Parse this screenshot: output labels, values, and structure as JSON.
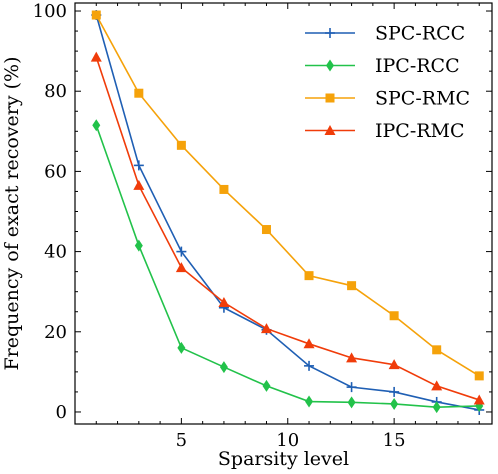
{
  "chart_data": {
    "type": "line",
    "title": "",
    "xlabel": "Sparsity level",
    "ylabel": "Frequency of exact recovery (%)",
    "xlim": [
      0,
      19.6
    ],
    "ylim": [
      -3,
      102
    ],
    "xticks": [
      5,
      10,
      15
    ],
    "yticks": [
      0,
      20,
      40,
      60,
      80,
      100
    ],
    "grid": false,
    "legend_position": "top-right",
    "x": [
      1,
      3,
      5,
      7,
      9,
      11,
      13,
      15,
      17,
      19
    ],
    "series": [
      {
        "name": "SPC-RCC",
        "color": "#1f5fb4",
        "marker": "plus",
        "values": [
          99,
          61.5,
          40,
          26,
          20.5,
          11.5,
          6.2,
          5,
          2.5,
          0.5
        ]
      },
      {
        "name": "IPC-RCC",
        "color": "#22c24a",
        "marker": "diamond",
        "values": [
          71.5,
          41.5,
          16,
          11.2,
          6.5,
          2.6,
          2.4,
          2,
          1.2,
          1.5
        ]
      },
      {
        "name": "SPC-RMC",
        "color": "#f5a20a",
        "marker": "square",
        "values": [
          99,
          79.5,
          66.5,
          55.5,
          45.5,
          34,
          31.5,
          24,
          15.5,
          9
        ]
      },
      {
        "name": "IPC-RMC",
        "color": "#f03c0a",
        "marker": "triangle",
        "values": [
          88.5,
          56.5,
          36,
          27.3,
          20.8,
          17,
          13.5,
          11.8,
          6.5,
          3
        ]
      }
    ]
  }
}
